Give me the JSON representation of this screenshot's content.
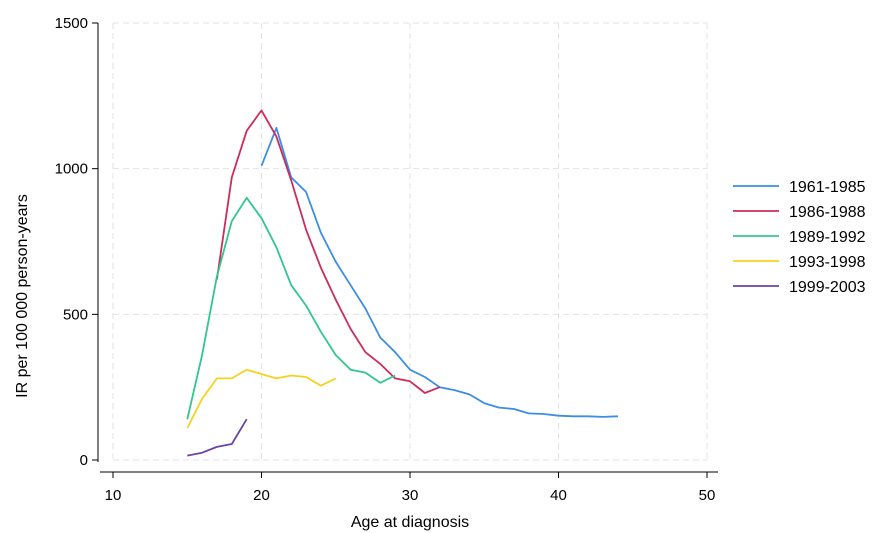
{
  "chart_data": {
    "type": "line",
    "title": "",
    "xlabel": "Age at diagnosis",
    "ylabel": "IR per 100 000 person-years",
    "xlim": [
      10,
      50
    ],
    "ylim": [
      0,
      1500
    ],
    "xticks": [
      10,
      20,
      30,
      40,
      50
    ],
    "yticks": [
      0,
      500,
      1000,
      1500
    ],
    "grid": true,
    "legend_position": "right",
    "series": [
      {
        "name": "1961-1985",
        "color": "#3C8DE6",
        "x": [
          20,
          21,
          22,
          23,
          24,
          25,
          26,
          27,
          28,
          29,
          30,
          31,
          32,
          33,
          34,
          35,
          36,
          37,
          38,
          39,
          40,
          41,
          42,
          43,
          44
        ],
        "y": [
          1010,
          1140,
          970,
          920,
          780,
          680,
          600,
          520,
          420,
          370,
          310,
          285,
          250,
          240,
          225,
          195,
          180,
          175,
          160,
          158,
          152,
          150,
          150,
          148,
          150
        ]
      },
      {
        "name": "1986-1988",
        "color": "#CC2C5A",
        "x": [
          17,
          18,
          19,
          20,
          21,
          22,
          23,
          24,
          25,
          26,
          27,
          28,
          29,
          30,
          31,
          32
        ],
        "y": [
          620,
          970,
          1130,
          1200,
          1110,
          960,
          790,
          660,
          550,
          450,
          370,
          330,
          280,
          270,
          230,
          250
        ]
      },
      {
        "name": "1989-1992",
        "color": "#2FC78E",
        "x": [
          15,
          16,
          17,
          18,
          19,
          20,
          21,
          22,
          23,
          24,
          25,
          26,
          27,
          28,
          29
        ],
        "y": [
          140,
          360,
          630,
          820,
          900,
          830,
          730,
          600,
          530,
          440,
          360,
          310,
          300,
          265,
          290
        ]
      },
      {
        "name": "1993-1998",
        "color": "#F7D21E",
        "x": [
          15,
          16,
          17,
          18,
          19,
          20,
          21,
          22,
          23,
          24,
          25
        ],
        "y": [
          110,
          210,
          280,
          280,
          310,
          295,
          280,
          290,
          285,
          255,
          280
        ]
      },
      {
        "name": "1999-2003",
        "color": "#6A44A8",
        "x": [
          15,
          16,
          17,
          18,
          19
        ],
        "y": [
          15,
          25,
          45,
          55,
          140
        ]
      }
    ]
  }
}
